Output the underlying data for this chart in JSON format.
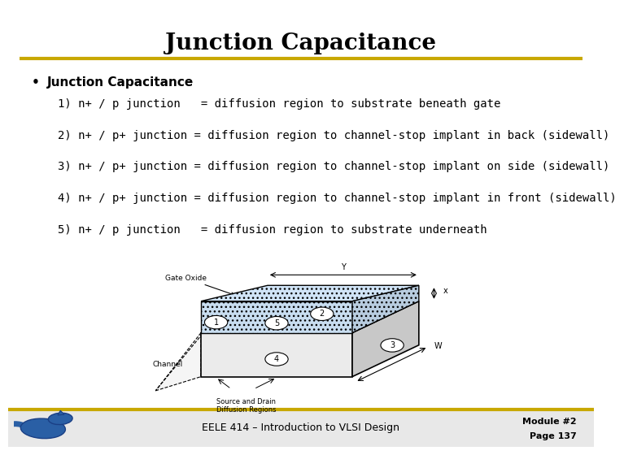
{
  "title": "Junction Capacitance",
  "title_fontsize": 20,
  "title_fontweight": "bold",
  "bullet_header": "Junction Capacitance",
  "bullet_header_fontsize": 11,
  "lines": [
    "1) n+ / p junction   = diffusion region to substrate beneath gate",
    "2) n+ / p+ junction = diffusion region to channel-stop implant in back (sidewall)",
    "3) n+ / p+ junction = diffusion region to channel-stop implant on side (sidewall)",
    "4) n+ / p+ junction = diffusion region to channel-stop implant in front (sidewall)",
    "5) n+ / p junction   = diffusion region to substrate underneath"
  ],
  "lines_fontsize": 10,
  "footer_left": "EELE 414 – Introduction to VLSI Design",
  "footer_right_line1": "Module #2",
  "footer_right_line2": "Page 137",
  "bg_color": "#ffffff",
  "title_bar_color": "#c8a800",
  "footer_bar_color": "#c8a800",
  "footer_bg_color": "#e8e8e8",
  "text_color": "#000000"
}
